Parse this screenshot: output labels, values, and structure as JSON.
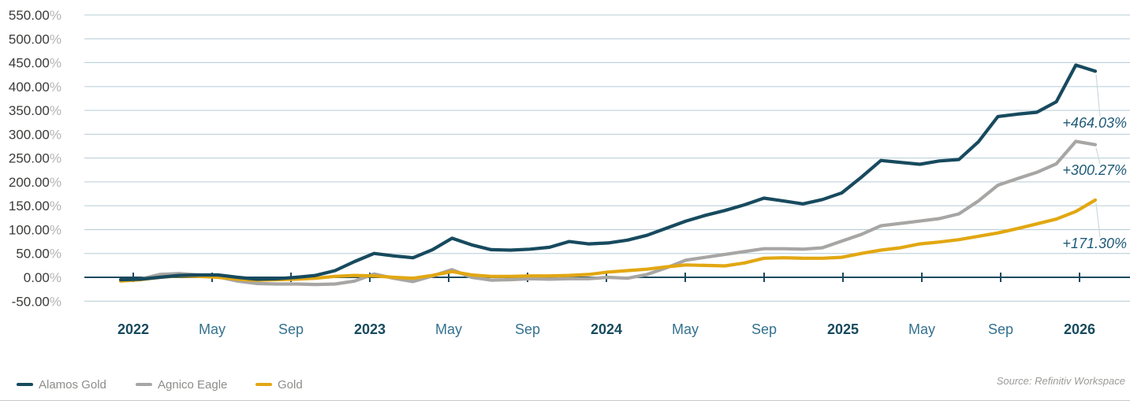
{
  "chart_data": {
    "type": "line",
    "title": "",
    "x_axis": {
      "tick_labels": [
        "2022",
        "May",
        "Sep",
        "2023",
        "May",
        "Sep",
        "2024",
        "May",
        "Sep",
        "2025",
        "May",
        "Sep",
        "2026"
      ],
      "tick_bold": [
        true,
        false,
        false,
        true,
        false,
        false,
        true,
        false,
        false,
        true,
        false,
        false,
        true
      ]
    },
    "y_axis": {
      "tick_labels": [
        "550.00",
        "500.00",
        "450.00",
        "400.00",
        "350.00",
        "300.00",
        "250.00",
        "200.00",
        "150.00",
        "100.00",
        "50.00",
        "0.00",
        "-50.00"
      ],
      "tick_values": [
        550,
        500,
        450,
        400,
        350,
        300,
        250,
        200,
        150,
        100,
        50,
        0,
        -50
      ],
      "suffix": "%",
      "ylim": [
        -50,
        550
      ],
      "grid": true
    },
    "x_note": "monthly samples, Dec 2021 through Feb 2026",
    "series": [
      {
        "name": "Alamos Gold",
        "color": "#174a5e",
        "end_label": "+464.03%",
        "values": [
          -5,
          -4,
          0,
          4,
          5,
          5,
          0,
          -4,
          -3,
          0,
          4,
          14,
          33,
          50,
          45,
          41,
          58,
          82,
          68,
          58,
          57,
          59,
          63,
          75,
          70,
          72,
          78,
          88,
          103,
          118,
          130,
          140,
          152,
          166,
          160,
          154,
          163,
          177,
          210,
          245,
          241,
          237,
          244,
          247,
          284,
          337,
          342,
          346,
          368,
          445,
          432
        ]
      },
      {
        "name": "Agnico Eagle",
        "color": "#a7a6a4",
        "end_label": "+300.27%",
        "values": [
          -7,
          -4,
          6,
          8,
          5,
          1,
          -8,
          -13,
          -14,
          -14,
          -15,
          -14,
          -8,
          7,
          -2,
          -9,
          3,
          16,
          0,
          -6,
          -5,
          -3,
          -4,
          -3,
          -3,
          0,
          -2,
          6,
          20,
          36,
          42,
          48,
          54,
          60,
          60,
          59,
          62,
          76,
          90,
          108,
          113,
          118,
          123,
          133,
          160,
          193,
          207,
          220,
          238,
          285,
          278
        ]
      },
      {
        "name": "Gold",
        "color": "#e2a712",
        "end_label": "+171.30%",
        "values": [
          -8,
          -5,
          0,
          3,
          2,
          0,
          -4,
          -6,
          -5,
          -4,
          -2,
          2,
          4,
          3,
          0,
          -2,
          4,
          12,
          5,
          2,
          2,
          3,
          3,
          4,
          6,
          11,
          14,
          17,
          22,
          26,
          25,
          24,
          30,
          40,
          41,
          40,
          40,
          42,
          50,
          57,
          62,
          70,
          74,
          79,
          86,
          93,
          102,
          112,
          122,
          138,
          162
        ]
      }
    ],
    "legend_position": "bottom-left"
  },
  "legend": {
    "items": [
      {
        "label": "Alamos Gold"
      },
      {
        "label": "Agnico Eagle"
      },
      {
        "label": "Gold"
      }
    ]
  },
  "annotations": [
    "+464.03%",
    "+300.27%",
    "+171.30%"
  ],
  "source": "Source: Refinitiv Workspace",
  "colors": {
    "grid": "#b6ccd6",
    "axis": "#1d4a5e",
    "y_tick_number": "#3b3b3a",
    "y_tick_suffix": "#b3b3b3",
    "x_label_year": "#174a5e",
    "x_label_month": "#34728f",
    "annotation_text": "#1e5a78",
    "leader_line": "#ccd9df",
    "legend_text": "#8c8c8a",
    "source_text": "#9b9b99"
  }
}
